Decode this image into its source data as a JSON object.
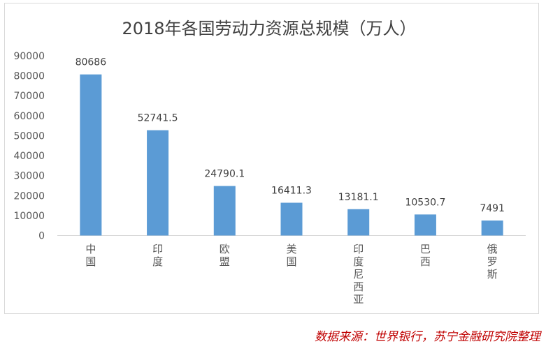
{
  "chart_data": {
    "type": "bar",
    "title": "2018年各国劳动力资源总规模（万人）",
    "categories": [
      "中国",
      "印度",
      "欧盟",
      "美国",
      "印度尼西亚",
      "巴西",
      "俄罗斯"
    ],
    "values": [
      80686,
      52741.5,
      24790.1,
      16411.3,
      13181.1,
      10530.7,
      7491
    ],
    "value_labels": [
      "80686",
      "52741.5",
      "24790.1",
      "16411.3",
      "13181.1",
      "10530.7",
      "7491"
    ],
    "y_ticks": [
      "0",
      "10000",
      "20000",
      "30000",
      "40000",
      "50000",
      "60000",
      "70000",
      "80000",
      "90000"
    ],
    "ylim": [
      0,
      90000
    ],
    "xlabel": "",
    "ylabel": "",
    "grid": false,
    "bar_color": "#5b9bd5"
  },
  "source_note": "数据来源：世界银行，苏宁金融研究院整理"
}
